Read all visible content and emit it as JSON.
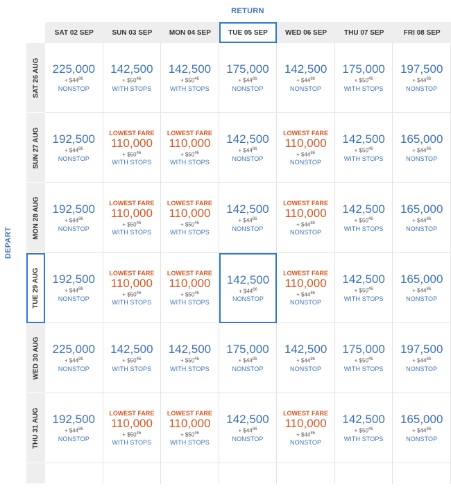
{
  "labels": {
    "return": "RETURN",
    "depart": "DEPART",
    "lowest_fare": "LOWEST FARE"
  },
  "selected": {
    "return_index": 3,
    "depart_index": 3
  },
  "return_dates": [
    "SAT 02 SEP",
    "SUN 03 SEP",
    "MON 04 SEP",
    "TUE 05 SEP",
    "WED 06 SEP",
    "THU 07 SEP",
    "FRI 08 SEP"
  ],
  "depart_dates": [
    "SAT 26 AUG",
    "SUN 27 AUG",
    "MON 28 AUG",
    "TUE 29 AUG",
    "WED 30 AUG",
    "THU 31 AUG"
  ],
  "rows": [
    [
      {
        "miles": "225,000",
        "tax_prefix": "+ $",
        "tax_int": "44",
        "tax_cents": "86",
        "stops": "NONSTOP",
        "lowest": false
      },
      {
        "miles": "142,500",
        "tax_prefix": "+ $",
        "tax_int": "50",
        "tax_cents": "46",
        "stops": "WITH STOPS",
        "lowest": false
      },
      {
        "miles": "142,500",
        "tax_prefix": "+ $",
        "tax_int": "50",
        "tax_cents": "46",
        "stops": "WITH STOPS",
        "lowest": false
      },
      {
        "miles": "175,000",
        "tax_prefix": "+ $",
        "tax_int": "44",
        "tax_cents": "86",
        "stops": "NONSTOP",
        "lowest": false
      },
      {
        "miles": "142,500",
        "tax_prefix": "+ $",
        "tax_int": "44",
        "tax_cents": "86",
        "stops": "NONSTOP",
        "lowest": false
      },
      {
        "miles": "175,000",
        "tax_prefix": "+ $",
        "tax_int": "50",
        "tax_cents": "46",
        "stops": "WITH STOPS",
        "lowest": false
      },
      {
        "miles": "197,500",
        "tax_prefix": "+ $",
        "tax_int": "44",
        "tax_cents": "86",
        "stops": "NONSTOP",
        "lowest": false
      }
    ],
    [
      {
        "miles": "192,500",
        "tax_prefix": "+ $",
        "tax_int": "44",
        "tax_cents": "86",
        "stops": "NONSTOP",
        "lowest": false
      },
      {
        "miles": "110,000",
        "tax_prefix": "+ $",
        "tax_int": "50",
        "tax_cents": "46",
        "stops": "WITH STOPS",
        "lowest": true
      },
      {
        "miles": "110,000",
        "tax_prefix": "+ $",
        "tax_int": "50",
        "tax_cents": "46",
        "stops": "WITH STOPS",
        "lowest": true
      },
      {
        "miles": "142,500",
        "tax_prefix": "+ $",
        "tax_int": "44",
        "tax_cents": "86",
        "stops": "NONSTOP",
        "lowest": false
      },
      {
        "miles": "110,000",
        "tax_prefix": "+ $",
        "tax_int": "44",
        "tax_cents": "86",
        "stops": "NONSTOP",
        "lowest": true
      },
      {
        "miles": "142,500",
        "tax_prefix": "+ $",
        "tax_int": "50",
        "tax_cents": "46",
        "stops": "WITH STOPS",
        "lowest": false
      },
      {
        "miles": "165,000",
        "tax_prefix": "+ $",
        "tax_int": "44",
        "tax_cents": "86",
        "stops": "NONSTOP",
        "lowest": false
      }
    ],
    [
      {
        "miles": "192,500",
        "tax_prefix": "+ $",
        "tax_int": "44",
        "tax_cents": "86",
        "stops": "NONSTOP",
        "lowest": false
      },
      {
        "miles": "110,000",
        "tax_prefix": "+ $",
        "tax_int": "50",
        "tax_cents": "46",
        "stops": "WITH STOPS",
        "lowest": true
      },
      {
        "miles": "110,000",
        "tax_prefix": "+ $",
        "tax_int": "50",
        "tax_cents": "46",
        "stops": "WITH STOPS",
        "lowest": true
      },
      {
        "miles": "142,500",
        "tax_prefix": "+ $",
        "tax_int": "44",
        "tax_cents": "86",
        "stops": "NONSTOP",
        "lowest": false
      },
      {
        "miles": "110,000",
        "tax_prefix": "+ $",
        "tax_int": "44",
        "tax_cents": "86",
        "stops": "NONSTOP",
        "lowest": true
      },
      {
        "miles": "142,500",
        "tax_prefix": "+ $",
        "tax_int": "50",
        "tax_cents": "46",
        "stops": "WITH STOPS",
        "lowest": false
      },
      {
        "miles": "165,000",
        "tax_prefix": "+ $",
        "tax_int": "44",
        "tax_cents": "86",
        "stops": "NONSTOP",
        "lowest": false
      }
    ],
    [
      {
        "miles": "192,500",
        "tax_prefix": "+ $",
        "tax_int": "44",
        "tax_cents": "86",
        "stops": "NONSTOP",
        "lowest": false
      },
      {
        "miles": "110,000",
        "tax_prefix": "+ $",
        "tax_int": "50",
        "tax_cents": "46",
        "stops": "WITH STOPS",
        "lowest": true
      },
      {
        "miles": "110,000",
        "tax_prefix": "+ $",
        "tax_int": "50",
        "tax_cents": "46",
        "stops": "WITH STOPS",
        "lowest": true
      },
      {
        "miles": "142,500",
        "tax_prefix": "+ $",
        "tax_int": "44",
        "tax_cents": "86",
        "stops": "NONSTOP",
        "lowest": false
      },
      {
        "miles": "110,000",
        "tax_prefix": "+ $",
        "tax_int": "44",
        "tax_cents": "86",
        "stops": "NONSTOP",
        "lowest": true
      },
      {
        "miles": "142,500",
        "tax_prefix": "+ $",
        "tax_int": "50",
        "tax_cents": "46",
        "stops": "WITH STOPS",
        "lowest": false
      },
      {
        "miles": "165,000",
        "tax_prefix": "+ $",
        "tax_int": "44",
        "tax_cents": "86",
        "stops": "NONSTOP",
        "lowest": false
      }
    ],
    [
      {
        "miles": "225,000",
        "tax_prefix": "+ $",
        "tax_int": "44",
        "tax_cents": "86",
        "stops": "NONSTOP",
        "lowest": false
      },
      {
        "miles": "142,500",
        "tax_prefix": "+ $",
        "tax_int": "50",
        "tax_cents": "46",
        "stops": "WITH STOPS",
        "lowest": false
      },
      {
        "miles": "142,500",
        "tax_prefix": "+ $",
        "tax_int": "50",
        "tax_cents": "46",
        "stops": "WITH STOPS",
        "lowest": false
      },
      {
        "miles": "175,000",
        "tax_prefix": "+ $",
        "tax_int": "44",
        "tax_cents": "86",
        "stops": "NONSTOP",
        "lowest": false
      },
      {
        "miles": "142,500",
        "tax_prefix": "+ $",
        "tax_int": "44",
        "tax_cents": "86",
        "stops": "NONSTOP",
        "lowest": false
      },
      {
        "miles": "175,000",
        "tax_prefix": "+ $",
        "tax_int": "50",
        "tax_cents": "46",
        "stops": "WITH STOPS",
        "lowest": false
      },
      {
        "miles": "197,500",
        "tax_prefix": "+ $",
        "tax_int": "44",
        "tax_cents": "86",
        "stops": "NONSTOP",
        "lowest": false
      }
    ],
    [
      {
        "miles": "192,500",
        "tax_prefix": "+ $",
        "tax_int": "44",
        "tax_cents": "86",
        "stops": "NONSTOP",
        "lowest": false
      },
      {
        "miles": "110,000",
        "tax_prefix": "+ $",
        "tax_int": "50",
        "tax_cents": "46",
        "stops": "WITH STOPS",
        "lowest": true
      },
      {
        "miles": "110,000",
        "tax_prefix": "+ $",
        "tax_int": "50",
        "tax_cents": "46",
        "stops": "WITH STOPS",
        "lowest": true
      },
      {
        "miles": "142,500",
        "tax_prefix": "+ $",
        "tax_int": "44",
        "tax_cents": "86",
        "stops": "NONSTOP",
        "lowest": false
      },
      {
        "miles": "110,000",
        "tax_prefix": "+ $",
        "tax_int": "44",
        "tax_cents": "86",
        "stops": "NONSTOP",
        "lowest": true
      },
      {
        "miles": "142,500",
        "tax_prefix": "+ $",
        "tax_int": "50",
        "tax_cents": "46",
        "stops": "WITH STOPS",
        "lowest": false
      },
      {
        "miles": "165,000",
        "tax_prefix": "+ $",
        "tax_int": "44",
        "tax_cents": "86",
        "stops": "NONSTOP",
        "lowest": false
      }
    ]
  ],
  "colors": {
    "accent": "#3d72b8",
    "lowest": "#d2551f",
    "selected_border": "#2f79c5",
    "header_bg": "#eeeeee"
  }
}
